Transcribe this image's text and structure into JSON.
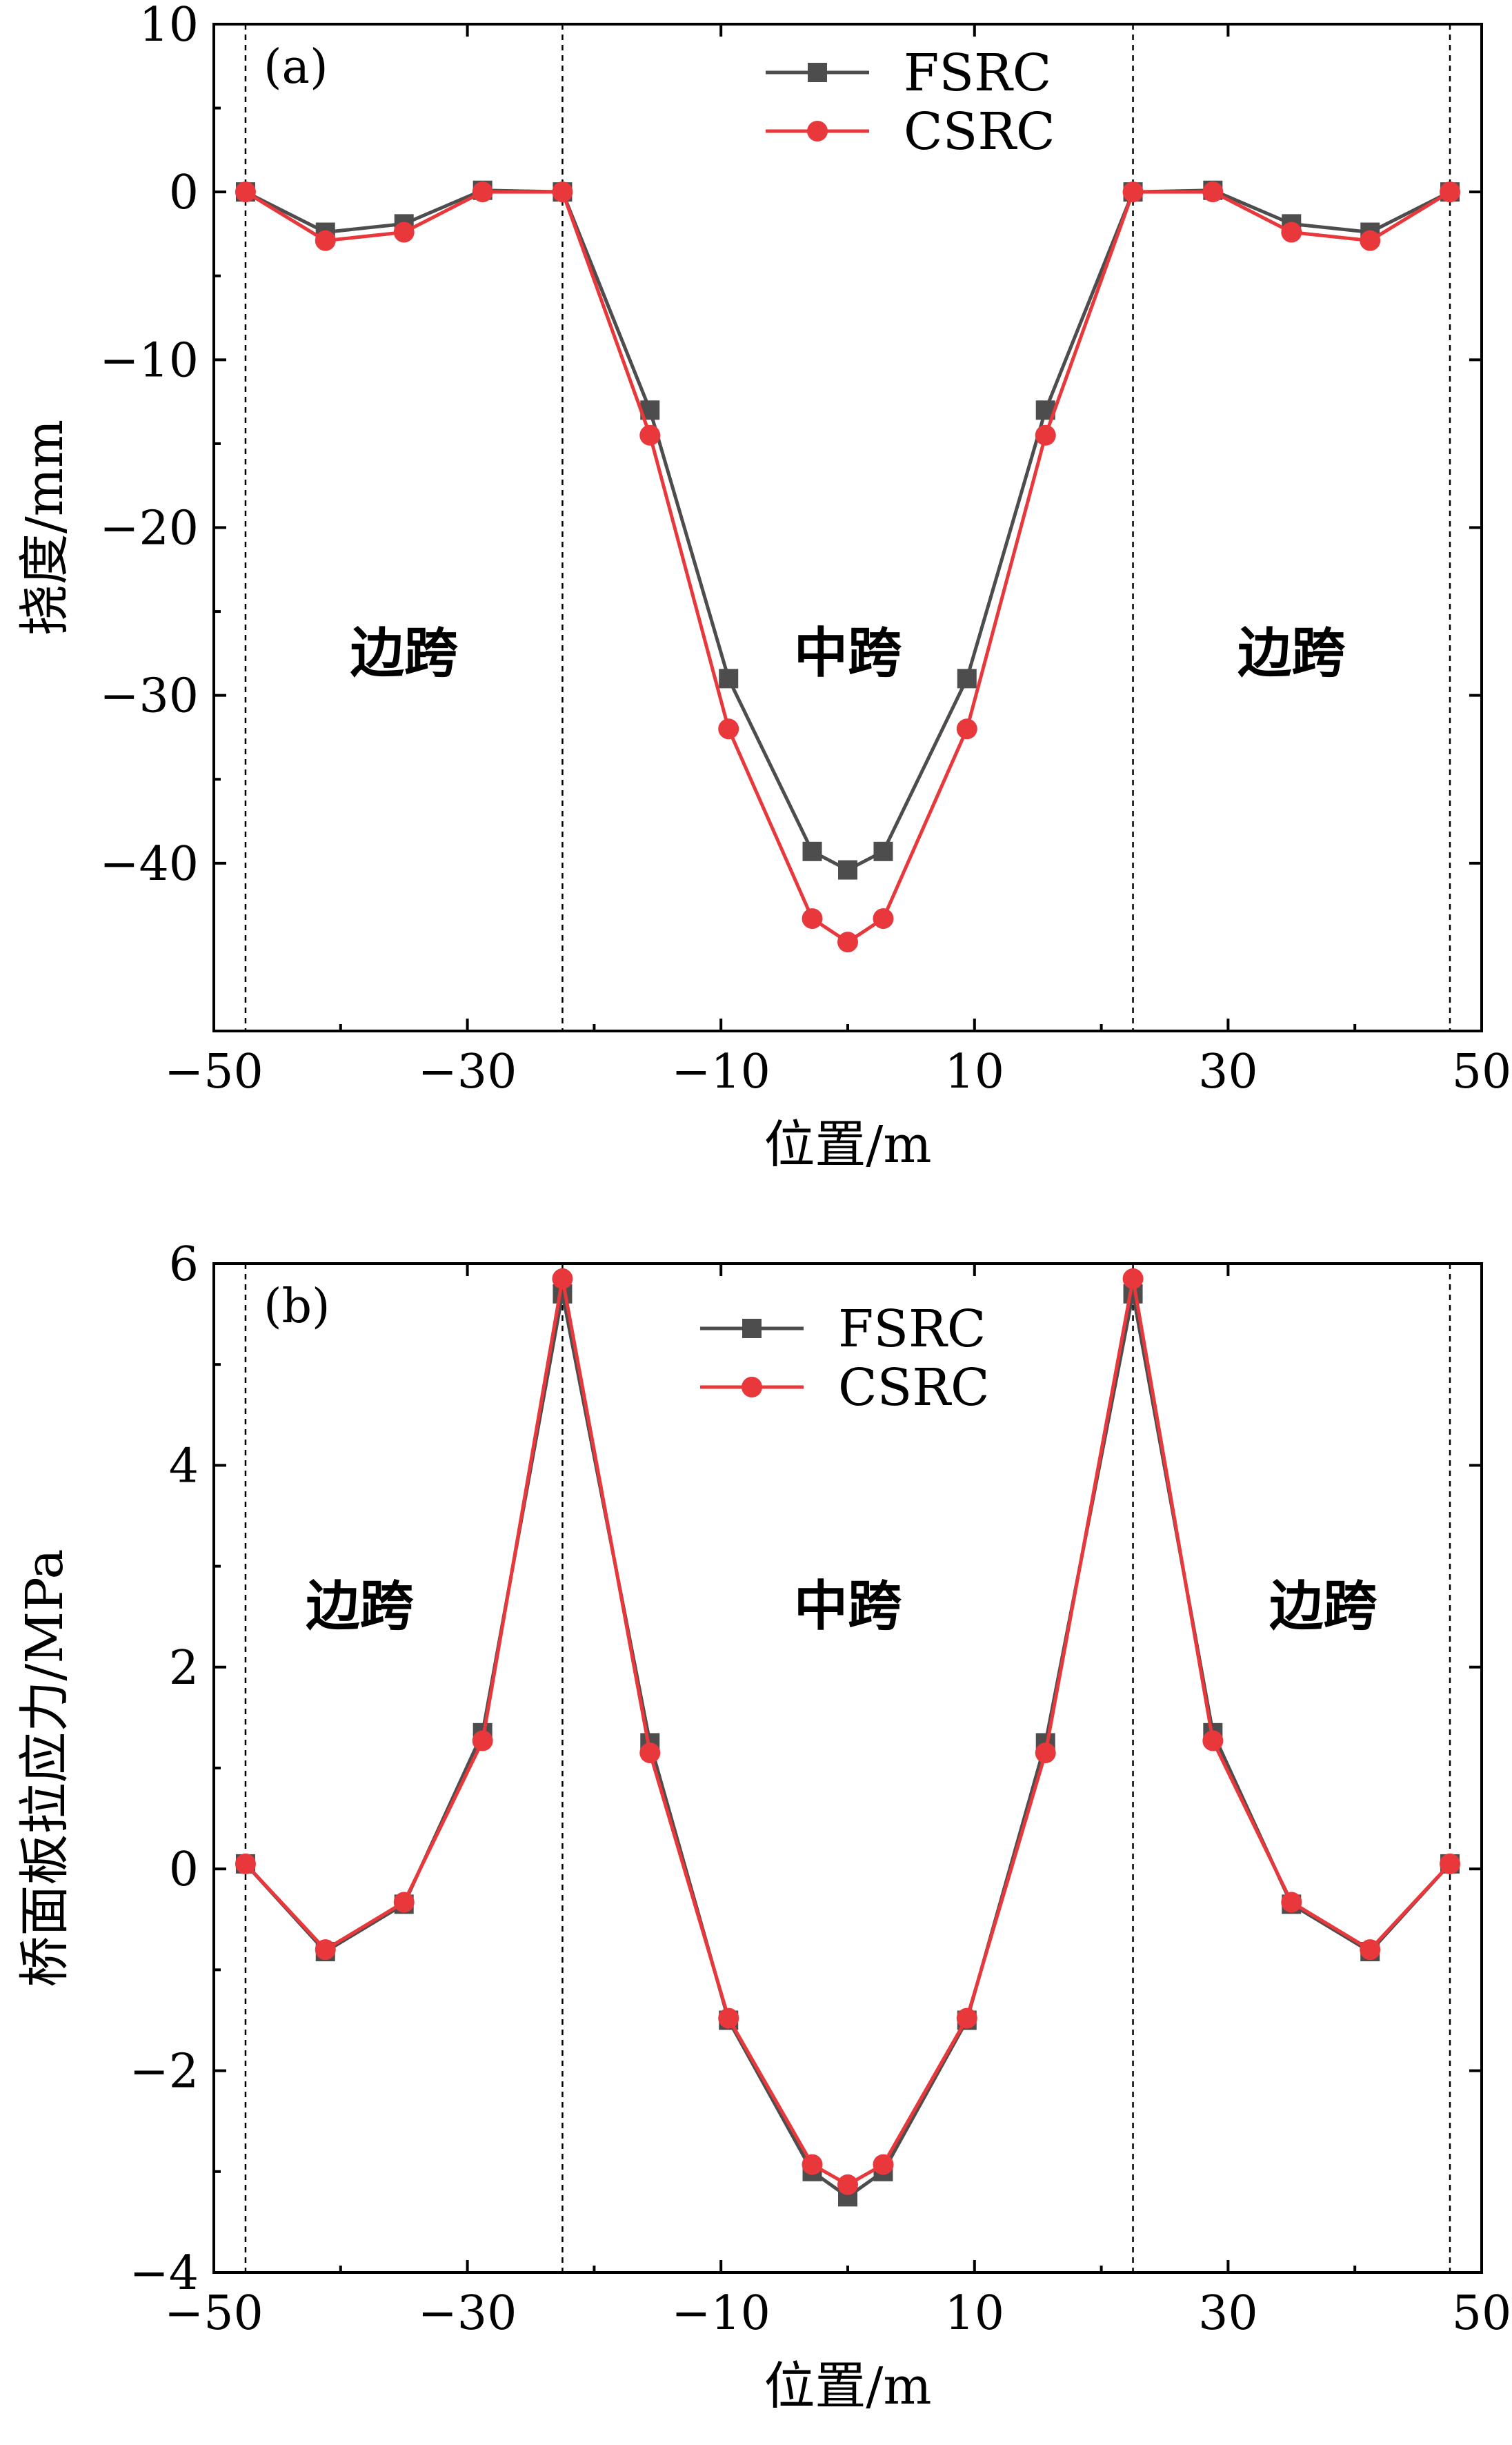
{
  "chart_data": [
    {
      "type": "line",
      "panel_tag": "(a)",
      "xlabel": "位置/m",
      "ylabel": "挠度/mm",
      "xlim": [
        -50,
        50
      ],
      "ylim": [
        -50,
        10
      ],
      "x_ticks": [
        -50,
        -30,
        -10,
        10,
        30,
        50
      ],
      "x_tick_labels": [
        "−50",
        "−30",
        "−10",
        "10",
        "30",
        "50"
      ],
      "y_ticks": [
        10,
        0,
        -10,
        -20,
        -30,
        -40
      ],
      "y_tick_labels": [
        "10",
        "0",
        "−10",
        "−20",
        "−30",
        "−40"
      ],
      "dividers": [
        -47.5,
        -22.5,
        22.5,
        47.5
      ],
      "regions": [
        {
          "label": "边跨",
          "x": -35,
          "y": -27.5
        },
        {
          "label": "中跨",
          "x": 0,
          "y": -27.5
        },
        {
          "label": "边跨",
          "x": 35,
          "y": -27.5
        }
      ],
      "legend_position": "top-center",
      "x": [
        -47.5,
        -41.2,
        -35,
        -28.8,
        -22.5,
        -15.6,
        -9.4,
        -2.8,
        0,
        2.8,
        9.4,
        15.6,
        22.5,
        28.8,
        35,
        41.2,
        47.5
      ],
      "series": [
        {
          "name": "FSRC",
          "color": "#4d4d4d",
          "marker": "square",
          "values": [
            0,
            -2.4,
            -1.9,
            0.1,
            0,
            -13.0,
            -29.0,
            -39.3,
            -40.4,
            -39.3,
            -29.0,
            -13.0,
            0,
            0.1,
            -1.9,
            -2.4,
            0
          ]
        },
        {
          "name": "CSRC",
          "color": "#e8383b",
          "marker": "circle",
          "values": [
            0,
            -2.9,
            -2.4,
            0,
            0,
            -14.5,
            -32.0,
            -43.3,
            -44.7,
            -43.3,
            -32.0,
            -14.5,
            0,
            0,
            -2.4,
            -2.9,
            0
          ]
        }
      ]
    },
    {
      "type": "line",
      "panel_tag": "(b)",
      "xlabel": "位置/m",
      "ylabel": "桥面板拉应力/MPa",
      "xlim": [
        -50,
        50
      ],
      "ylim": [
        -4,
        6
      ],
      "x_ticks": [
        -50,
        -30,
        -10,
        10,
        30,
        50
      ],
      "x_tick_labels": [
        "−50",
        "−30",
        "−10",
        "10",
        "30",
        "50"
      ],
      "y_ticks": [
        6,
        4,
        2,
        0,
        -2,
        -4
      ],
      "y_tick_labels": [
        "6",
        "4",
        "2",
        "0",
        "−2",
        "−4"
      ],
      "dividers": [
        -47.5,
        -22.5,
        22.5,
        47.5
      ],
      "regions": [
        {
          "label": "边跨",
          "x": -38.5,
          "y": 2.6
        },
        {
          "label": "中跨",
          "x": 0,
          "y": 2.6
        },
        {
          "label": "边跨",
          "x": 37.5,
          "y": 2.6
        }
      ],
      "legend_position": "top-center",
      "x": [
        -47.5,
        -41.2,
        -35,
        -28.8,
        -22.5,
        -15.6,
        -9.4,
        -2.8,
        0,
        2.8,
        9.4,
        15.6,
        22.5,
        28.8,
        35,
        41.2,
        47.5
      ],
      "series": [
        {
          "name": "FSRC",
          "color": "#4d4d4d",
          "marker": "square",
          "values": [
            0.05,
            -0.82,
            -0.35,
            1.35,
            5.7,
            1.25,
            -1.5,
            -3.0,
            -3.25,
            -3.0,
            -1.5,
            1.25,
            5.7,
            1.35,
            -0.35,
            -0.82,
            0.05
          ]
        },
        {
          "name": "CSRC",
          "color": "#e8383b",
          "marker": "circle",
          "values": [
            0.05,
            -0.8,
            -0.33,
            1.27,
            5.85,
            1.15,
            -1.48,
            -2.93,
            -3.13,
            -2.93,
            -1.48,
            1.15,
            5.85,
            1.27,
            -0.33,
            -0.8,
            0.05
          ]
        }
      ]
    }
  ]
}
